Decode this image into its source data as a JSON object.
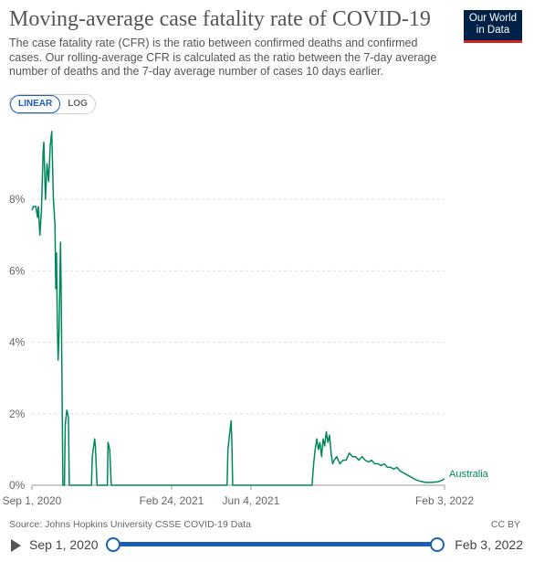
{
  "header": {
    "title": "Moving-average case fatality rate of COVID-19",
    "subtitle": "The case fatality rate (CFR) is the ratio between confirmed deaths and confirmed cases. Our rolling-average CFR is calculated as the ratio between the 7-day average number of deaths and the 7-day average number of cases 10 days earlier.",
    "logo_line1": "Our World",
    "logo_line2": "in Data"
  },
  "controls": {
    "linear_label": "LINEAR",
    "log_label": "LOG",
    "active": "LINEAR"
  },
  "chart_data": {
    "type": "line",
    "xlabel": "",
    "ylabel": "",
    "ylim": [
      0,
      10
    ],
    "yticks": [
      {
        "value": 0,
        "label": "0%"
      },
      {
        "value": 2,
        "label": "2%"
      },
      {
        "value": 4,
        "label": "4%"
      },
      {
        "value": 6,
        "label": "6%"
      },
      {
        "value": 8,
        "label": "8%"
      }
    ],
    "xlim": [
      "2020-09-01",
      "2022-02-03"
    ],
    "xticks": [
      {
        "value": "2020-09-01",
        "label": "Sep 1, 2020"
      },
      {
        "value": "2021-02-24",
        "label": "Feb 24, 2021"
      },
      {
        "value": "2021-06-04",
        "label": "Jun 4, 2021"
      },
      {
        "value": "2022-02-03",
        "label": "Feb 3, 2022"
      }
    ],
    "grid": "horizontal-dashed",
    "series": [
      {
        "name": "Australia",
        "color": "#00875e",
        "points": [
          [
            "2020-09-01",
            7.7
          ],
          [
            "2020-09-03",
            7.8
          ],
          [
            "2020-09-06",
            7.8
          ],
          [
            "2020-09-08",
            7.5
          ],
          [
            "2020-09-09",
            7.8
          ],
          [
            "2020-09-11",
            7.0
          ],
          [
            "2020-09-13",
            7.7
          ],
          [
            "2020-09-15",
            9.3
          ],
          [
            "2020-09-16",
            9.6
          ],
          [
            "2020-09-18",
            8.0
          ],
          [
            "2020-09-20",
            9.0
          ],
          [
            "2020-09-22",
            8.5
          ],
          [
            "2020-09-24",
            9.5
          ],
          [
            "2020-09-26",
            9.9
          ],
          [
            "2020-09-28",
            8.0
          ],
          [
            "2020-09-30",
            7.3
          ],
          [
            "2020-10-01",
            5.5
          ],
          [
            "2020-10-02",
            6.5
          ],
          [
            "2020-10-03",
            4.5
          ],
          [
            "2020-10-04",
            3.5
          ],
          [
            "2020-10-05",
            4.2
          ],
          [
            "2020-10-07",
            6.8
          ],
          [
            "2020-10-08",
            5.0
          ],
          [
            "2020-10-10",
            0.0
          ],
          [
            "2020-10-12",
            0.0
          ],
          [
            "2020-10-13",
            1.7
          ],
          [
            "2020-10-15",
            2.1
          ],
          [
            "2020-10-17",
            1.9
          ],
          [
            "2020-10-18",
            0.0
          ],
          [
            "2020-11-15",
            0.0
          ],
          [
            "2020-11-16",
            0.8
          ],
          [
            "2020-11-19",
            1.3
          ],
          [
            "2020-11-20",
            1.1
          ],
          [
            "2020-11-22",
            0.0
          ],
          [
            "2020-12-05",
            0.0
          ],
          [
            "2020-12-06",
            1.2
          ],
          [
            "2020-12-08",
            1.0
          ],
          [
            "2020-12-10",
            0.0
          ],
          [
            "2021-05-05",
            0.0
          ],
          [
            "2021-05-06",
            1.0
          ],
          [
            "2021-05-08",
            1.4
          ],
          [
            "2021-05-10",
            1.8
          ],
          [
            "2021-05-11",
            1.2
          ],
          [
            "2021-05-12",
            0.0
          ],
          [
            "2021-08-20",
            0.0
          ],
          [
            "2021-08-22",
            0.6
          ],
          [
            "2021-08-24",
            1.0
          ],
          [
            "2021-08-26",
            1.3
          ],
          [
            "2021-08-28",
            1.0
          ],
          [
            "2021-08-30",
            1.2
          ],
          [
            "2021-09-01",
            0.8
          ],
          [
            "2021-09-03",
            1.3
          ],
          [
            "2021-09-05",
            1.1
          ],
          [
            "2021-09-07",
            1.5
          ],
          [
            "2021-09-09",
            1.2
          ],
          [
            "2021-09-11",
            1.4
          ],
          [
            "2021-09-13",
            0.9
          ],
          [
            "2021-09-15",
            0.6
          ],
          [
            "2021-09-17",
            0.7
          ],
          [
            "2021-09-20",
            0.8
          ],
          [
            "2021-09-24",
            0.6
          ],
          [
            "2021-09-28",
            0.7
          ],
          [
            "2021-10-02",
            0.7
          ],
          [
            "2021-10-06",
            0.9
          ],
          [
            "2021-10-10",
            0.8
          ],
          [
            "2021-10-14",
            0.8
          ],
          [
            "2021-10-18",
            0.7
          ],
          [
            "2021-10-22",
            0.8
          ],
          [
            "2021-10-26",
            0.7
          ],
          [
            "2021-10-30",
            0.65
          ],
          [
            "2021-11-03",
            0.7
          ],
          [
            "2021-11-07",
            0.6
          ],
          [
            "2021-11-11",
            0.6
          ],
          [
            "2021-11-15",
            0.55
          ],
          [
            "2021-11-19",
            0.6
          ],
          [
            "2021-11-23",
            0.5
          ],
          [
            "2021-11-27",
            0.5
          ],
          [
            "2021-12-01",
            0.45
          ],
          [
            "2021-12-05",
            0.5
          ],
          [
            "2021-12-09",
            0.4
          ],
          [
            "2021-12-13",
            0.35
          ],
          [
            "2021-12-17",
            0.3
          ],
          [
            "2021-12-21",
            0.25
          ],
          [
            "2021-12-25",
            0.2
          ],
          [
            "2021-12-29",
            0.15
          ],
          [
            "2022-01-02",
            0.12
          ],
          [
            "2022-01-06",
            0.1
          ],
          [
            "2022-01-10",
            0.08
          ],
          [
            "2022-01-14",
            0.08
          ],
          [
            "2022-01-18",
            0.08
          ],
          [
            "2022-01-22",
            0.09
          ],
          [
            "2022-01-26",
            0.1
          ],
          [
            "2022-01-30",
            0.13
          ],
          [
            "2022-02-03",
            0.18
          ]
        ]
      }
    ]
  },
  "footer": {
    "source": "Source: Johns Hopkins University CSSE COVID-19 Data",
    "license": "CC BY"
  },
  "timeline": {
    "start_label": "Sep 1, 2020",
    "end_label": "Feb 3, 2022"
  }
}
